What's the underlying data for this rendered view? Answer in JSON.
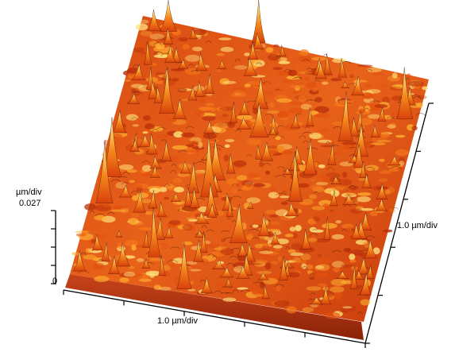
{
  "image": {
    "kind": "3D afm-surface-rendering",
    "palette": [
      "#6a1a05",
      "#b8300a",
      "#e2500f",
      "#f57a1a",
      "#ffb030",
      "#ffe27a",
      "#fff7e0",
      "#ffffff"
    ],
    "base_color": "#b83a12"
  },
  "axes": {
    "z_unit": "µm/div",
    "z_max": "0.027",
    "z_zero": "0",
    "x_scale": "1.0 µm/div",
    "y_scale": "1.0 µm/div"
  }
}
